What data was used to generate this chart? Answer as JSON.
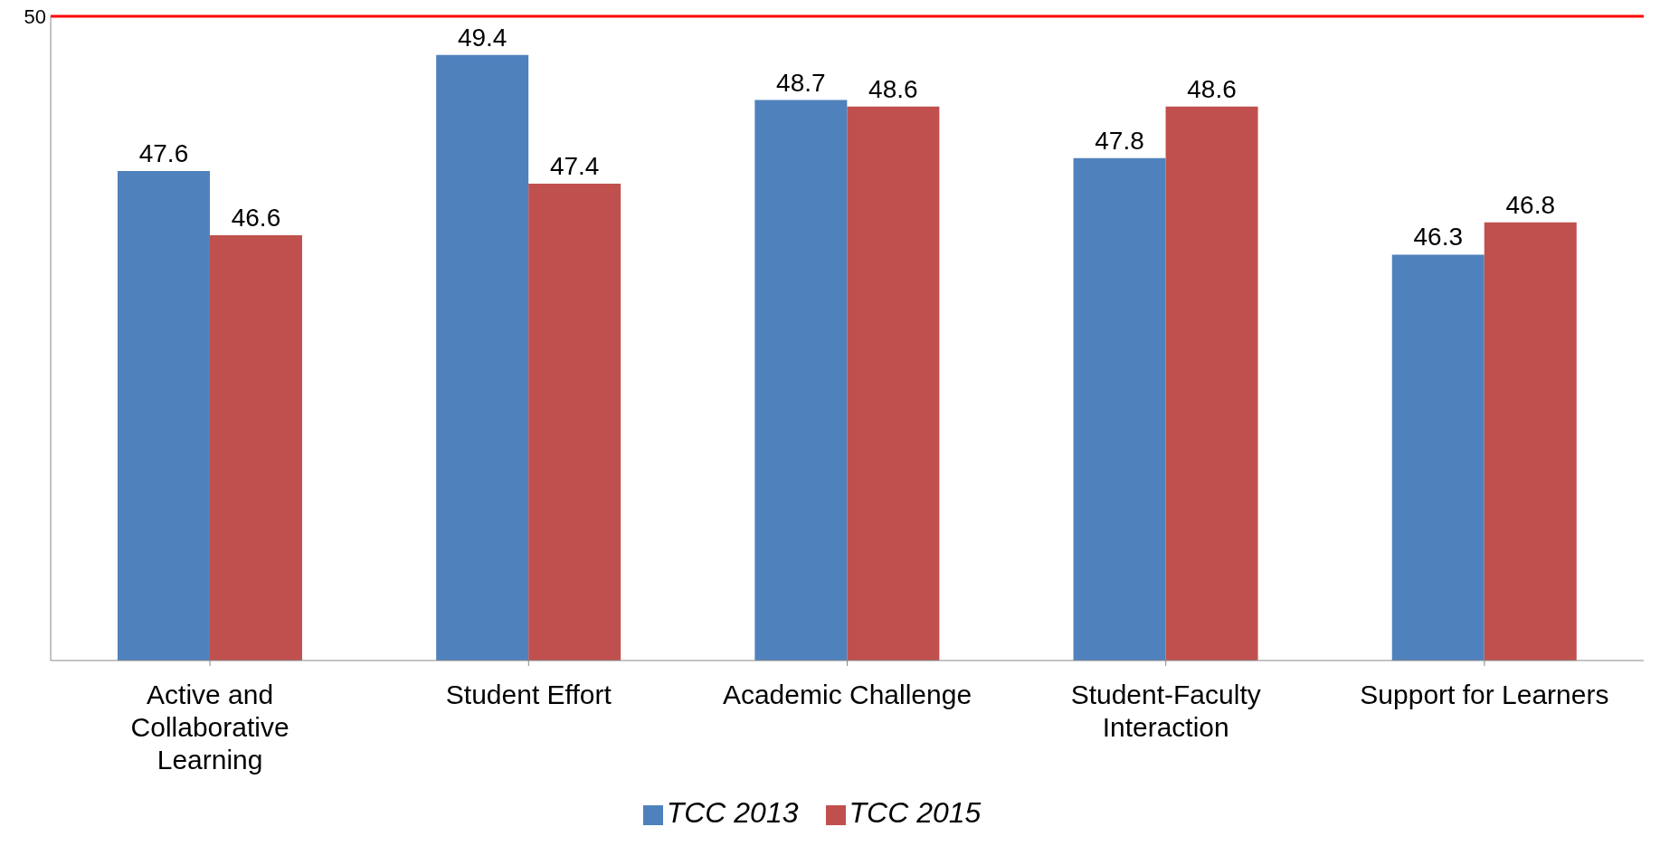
{
  "chart_data": {
    "type": "bar",
    "categories": [
      "Active and Collaborative Learning",
      "Student Effort",
      "Academic Challenge",
      "Student-Faculty Interaction",
      "Support for Learners"
    ],
    "series": [
      {
        "name": "TCC 2013",
        "color": "#4f81bd",
        "values": [
          47.6,
          49.4,
          48.7,
          47.8,
          46.3
        ]
      },
      {
        "name": "TCC 2015",
        "color": "#c0504d",
        "values": [
          46.6,
          47.4,
          48.6,
          48.6,
          46.8
        ]
      }
    ],
    "ylim": [
      40,
      50
    ],
    "ref_lines": [
      {
        "axis": "y",
        "value": 50,
        "label": "50",
        "color": "#ff0000"
      }
    ],
    "data_labels": true,
    "legend": "bottom"
  }
}
